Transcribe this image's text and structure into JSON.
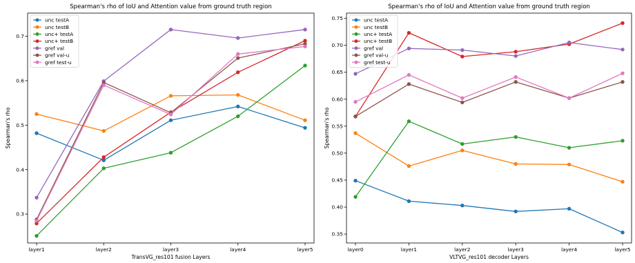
{
  "chart_data": [
    {
      "type": "line",
      "title": "Spearman's rho of IoU and Attention value from ground truth region",
      "xlabel": "TransVG_res101 fusion Layers",
      "ylabel": "Spearman's rho",
      "categories": [
        "layer1",
        "layer2",
        "layer3",
        "layer4",
        "layer5"
      ],
      "ylim": [
        0.235,
        0.752
      ],
      "yticks": [
        0.3,
        0.4,
        0.5,
        0.6,
        0.7
      ],
      "ytick_labels": [
        "0.3",
        "0.4",
        "0.5",
        "0.6",
        "0.7"
      ],
      "grid": false,
      "legend_position": "top-left",
      "series": [
        {
          "name": "unc testA",
          "color": "#1f77b4",
          "values": [
            0.482,
            0.421,
            0.511,
            0.542,
            0.494
          ]
        },
        {
          "name": "unc testB",
          "color": "#ff7f0e",
          "values": [
            0.525,
            0.487,
            0.566,
            0.568,
            0.511
          ]
        },
        {
          "name": "unc+ testA",
          "color": "#2ca02c",
          "values": [
            0.251,
            0.403,
            0.438,
            0.52,
            0.634
          ]
        },
        {
          "name": "unc+ testB",
          "color": "#d62728",
          "values": [
            0.279,
            0.428,
            0.529,
            0.619,
            0.69
          ]
        },
        {
          "name": "gref val",
          "color": "#9467bd",
          "values": [
            0.337,
            0.599,
            0.715,
            0.696,
            0.715
          ]
        },
        {
          "name": "gref val-u",
          "color": "#8c564b",
          "values": [
            0.288,
            0.596,
            0.528,
            0.651,
            0.683
          ]
        },
        {
          "name": "gref test-u",
          "color": "#e377c2",
          "values": [
            0.285,
            0.59,
            0.524,
            0.66,
            0.677
          ]
        }
      ]
    },
    {
      "type": "line",
      "title": "Spearman's rho of IoU and Attention value from ground truth region",
      "xlabel": "VLTVG_res101 decoder Layers",
      "ylabel": "Spearman's rho",
      "categories": [
        "layer0",
        "layer1",
        "layer2",
        "layer3",
        "layer4",
        "layer5"
      ],
      "ylim": [
        0.3335,
        0.7595
      ],
      "yticks": [
        0.35,
        0.4,
        0.45,
        0.5,
        0.55,
        0.6,
        0.65,
        0.7,
        0.75
      ],
      "ytick_labels": [
        "0.35",
        "0.40",
        "0.45",
        "0.50",
        "0.55",
        "0.60",
        "0.65",
        "0.70",
        "0.75"
      ],
      "grid": false,
      "legend_position": "top-left",
      "series": [
        {
          "name": "unc testA",
          "color": "#1f77b4",
          "values": [
            0.449,
            0.411,
            0.403,
            0.392,
            0.397,
            0.353
          ]
        },
        {
          "name": "unc testB",
          "color": "#ff7f0e",
          "values": [
            0.537,
            0.476,
            0.505,
            0.48,
            0.479,
            0.447
          ]
        },
        {
          "name": "unc+ testA",
          "color": "#2ca02c",
          "values": [
            0.419,
            0.559,
            0.517,
            0.53,
            0.51,
            0.523
          ]
        },
        {
          "name": "unc+ testB",
          "color": "#d62728",
          "values": [
            0.568,
            0.723,
            0.679,
            0.688,
            0.702,
            0.741
          ]
        },
        {
          "name": "gref val",
          "color": "#9467bd",
          "values": [
            0.647,
            0.694,
            0.691,
            0.68,
            0.705,
            0.692
          ]
        },
        {
          "name": "gref val-u",
          "color": "#8c564b",
          "values": [
            0.568,
            0.628,
            0.594,
            0.632,
            0.602,
            0.632
          ]
        },
        {
          "name": "gref test-u",
          "color": "#e377c2",
          "values": [
            0.595,
            0.645,
            0.602,
            0.641,
            0.602,
            0.648
          ]
        }
      ]
    }
  ]
}
